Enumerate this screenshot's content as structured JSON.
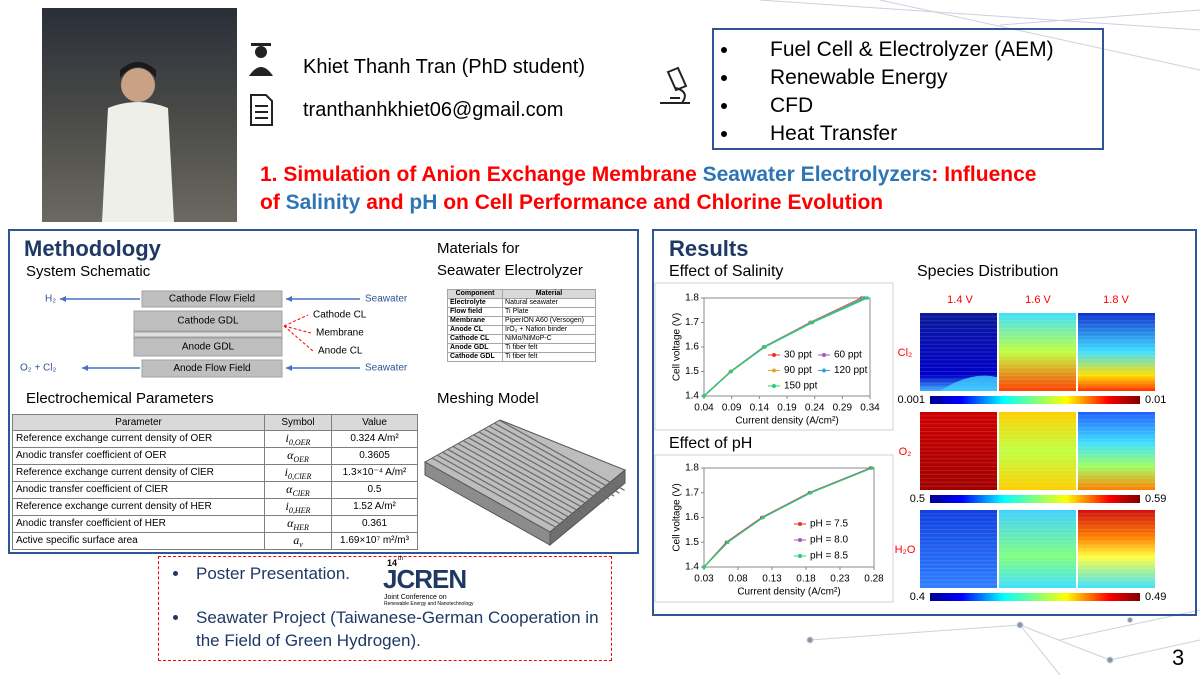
{
  "profile": {
    "name": "Khiet Thanh Tran (PhD student)",
    "email": "tranthanhkhiet06@gmail.com"
  },
  "interests": [
    "Fuel Cell & Electrolyzer (AEM)",
    "Renewable Energy",
    "CFD",
    "Heat Transfer"
  ],
  "title": {
    "lines": [
      [
        {
          "text": "1. Simulation of Anion Exchange Membrane ",
          "color": "#ff0000"
        },
        {
          "text": "Seawater Electrolyzers",
          "color": "#2e75b6"
        },
        {
          "text": ": Influence",
          "color": "#ff0000"
        }
      ],
      [
        {
          "text": "of ",
          "color": "#ff0000"
        },
        {
          "text": "Salinity",
          "color": "#2e75b6"
        },
        {
          "text": " and ",
          "color": "#ff0000"
        },
        {
          "text": "pH",
          "color": "#2e75b6"
        },
        {
          "text": " on Cell Performance and Chlorine Evolution",
          "color": "#ff0000"
        }
      ]
    ]
  },
  "methodology": {
    "heading": "Methodology",
    "schematic_title": "System Schematic",
    "schematic": {
      "h2": "H₂",
      "seawater_in": "Seawater",
      "cathode_flow_field": "Cathode Flow Field",
      "cathode_gdl": "Cathode GDL",
      "cathode_cl": "Cathode CL",
      "membrane": "Membrane",
      "anode_gdl": "Anode GDL",
      "anode_cl": "Anode CL",
      "o2_cl2": "O₂ + Cl₂",
      "anode_flow_field": "Anode Flow Field",
      "seawater_out": "Seawater"
    },
    "materials_title": [
      "Materials for",
      "Seawater Electrolyzer"
    ],
    "materials_table": {
      "header": [
        "Component",
        "Material"
      ],
      "rows": [
        [
          "Electrolyte",
          "Natural seawater"
        ],
        [
          "Flow field",
          "Ti Plate"
        ],
        [
          "Membrane",
          "PiperION A60 (Versogen)"
        ],
        [
          "Anode CL",
          "IrO₂ + Nafion binder"
        ],
        [
          "Cathode CL",
          "NiMo/NiMoP-C"
        ],
        [
          "Anode GDL",
          "Ti fiber felt"
        ],
        [
          "Cathode GDL",
          "Ti fiber felt"
        ]
      ]
    },
    "parameters_title": "Electrochemical  Parameters",
    "parameters_table": {
      "header": [
        "Parameter",
        "Symbol",
        "Value"
      ],
      "rows": [
        {
          "parameter": "Reference exchange current density of OER",
          "symbol": {
            "main": "i",
            "sub": "0,OER"
          },
          "value": "0.324 A/m²"
        },
        {
          "parameter": "Anodic transfer coefficient of OER",
          "symbol": {
            "main": "α",
            "sub": "OER"
          },
          "value": "0.3605"
        },
        {
          "parameter": "Reference exchange current density of ClER",
          "symbol": {
            "main": "i",
            "sub": "0,ClER"
          },
          "value": "1.3×10⁻⁴ A/m²"
        },
        {
          "parameter": "Anodic transfer coefficient of ClER",
          "symbol": {
            "main": "α",
            "sub": "ClER"
          },
          "value": "0.5"
        },
        {
          "parameter": "Reference exchange current density of HER",
          "symbol": {
            "main": "i",
            "sub": "0,HER"
          },
          "value": "1.52 A/m²"
        },
        {
          "parameter": "Anodic transfer coefficient of HER",
          "symbol": {
            "main": "α",
            "sub": "HER"
          },
          "value": "0.361"
        },
        {
          "parameter": "Active specific surface area",
          "symbol": {
            "main": "a",
            "sub": "v"
          },
          "value": "1.69×10⁷ m²/m³"
        }
      ]
    },
    "meshing_title": "Meshing Model"
  },
  "results": {
    "heading": "Results",
    "salinity_chart": {
      "type": "line",
      "title": "Effect of Salinity",
      "x_label": "Current density (A/cm²)",
      "y_label": "Cell voltage (V)",
      "xlim": [
        0.04,
        0.34
      ],
      "xticks": [
        0.04,
        0.09,
        0.14,
        0.19,
        0.24,
        0.29,
        0.34
      ],
      "ylim": [
        1.4,
        1.8
      ],
      "yticks": [
        1.4,
        1.5,
        1.6,
        1.7,
        1.8
      ],
      "series": [
        {
          "name": "30 ppt",
          "color": "#e8322b",
          "x": [
            0.04,
            0.088,
            0.148,
            0.232,
            0.325
          ],
          "values": [
            1.4,
            1.5,
            1.6,
            1.7,
            1.8
          ]
        },
        {
          "name": "60 ppt",
          "color": "#9b59b6",
          "x": [
            0.04,
            0.088,
            0.148,
            0.233,
            0.327
          ],
          "values": [
            1.4,
            1.5,
            1.6,
            1.7,
            1.8
          ]
        },
        {
          "name": "90 ppt",
          "color": "#f0a030",
          "x": [
            0.04,
            0.088,
            0.149,
            0.234,
            0.328
          ],
          "values": [
            1.4,
            1.5,
            1.6,
            1.7,
            1.8
          ]
        },
        {
          "name": "120 ppt",
          "color": "#3fa0d8",
          "x": [
            0.04,
            0.089,
            0.149,
            0.235,
            0.33
          ],
          "values": [
            1.4,
            1.5,
            1.6,
            1.7,
            1.8
          ]
        },
        {
          "name": "150 ppt",
          "color": "#2ecc71",
          "x": [
            0.04,
            0.089,
            0.15,
            0.236,
            0.335
          ],
          "values": [
            1.4,
            1.5,
            1.6,
            1.7,
            1.8
          ]
        }
      ]
    },
    "ph_chart": {
      "type": "line",
      "title": "Effect of pH",
      "x_label": "Current density (A/cm²)",
      "y_label": "Cell voltage (V)",
      "xlim": [
        0.03,
        0.28
      ],
      "xticks": [
        0.03,
        0.08,
        0.13,
        0.18,
        0.23,
        0.28
      ],
      "ylim": [
        1.4,
        1.8
      ],
      "yticks": [
        1.4,
        1.5,
        1.6,
        1.7,
        1.8
      ],
      "series": [
        {
          "name": "pH = 7.5",
          "color": "#e8322b",
          "x": [
            0.03,
            0.063,
            0.115,
            0.185,
            0.275
          ],
          "values": [
            1.4,
            1.5,
            1.6,
            1.7,
            1.8
          ]
        },
        {
          "name": "pH = 8.0",
          "color": "#9b59b6",
          "x": [
            0.03,
            0.064,
            0.116,
            0.186,
            0.276
          ],
          "values": [
            1.4,
            1.5,
            1.6,
            1.7,
            1.8
          ]
        },
        {
          "name": "pH = 8.5",
          "color": "#2ecc71",
          "x": [
            0.03,
            0.065,
            0.117,
            0.187,
            0.277
          ],
          "values": [
            1.4,
            1.5,
            1.6,
            1.7,
            1.8
          ]
        }
      ]
    },
    "species": {
      "title": "Species Distribution",
      "voltages": [
        "1.4 V",
        "1.6 V",
        "1.8 V"
      ],
      "rows": [
        {
          "label": "Cl₂",
          "min": "0.001",
          "max": "0.01"
        },
        {
          "label": "O₂",
          "min": "0.5",
          "max": "0.59"
        },
        {
          "label": "H₂O",
          "min": "0.4",
          "max": "0.49"
        }
      ]
    }
  },
  "footer": {
    "items": [
      "Poster Presentation.",
      "Seawater Project (Taiwanese-German Cooperation in the Field of Green Hydrogen)."
    ],
    "logo": {
      "edition": "14",
      "edition_suffix": "th",
      "name": "JCREN",
      "subtitle": [
        "Joint Conference on",
        "Renewable Energy and Nanotechnology"
      ]
    }
  },
  "page_number": "3"
}
